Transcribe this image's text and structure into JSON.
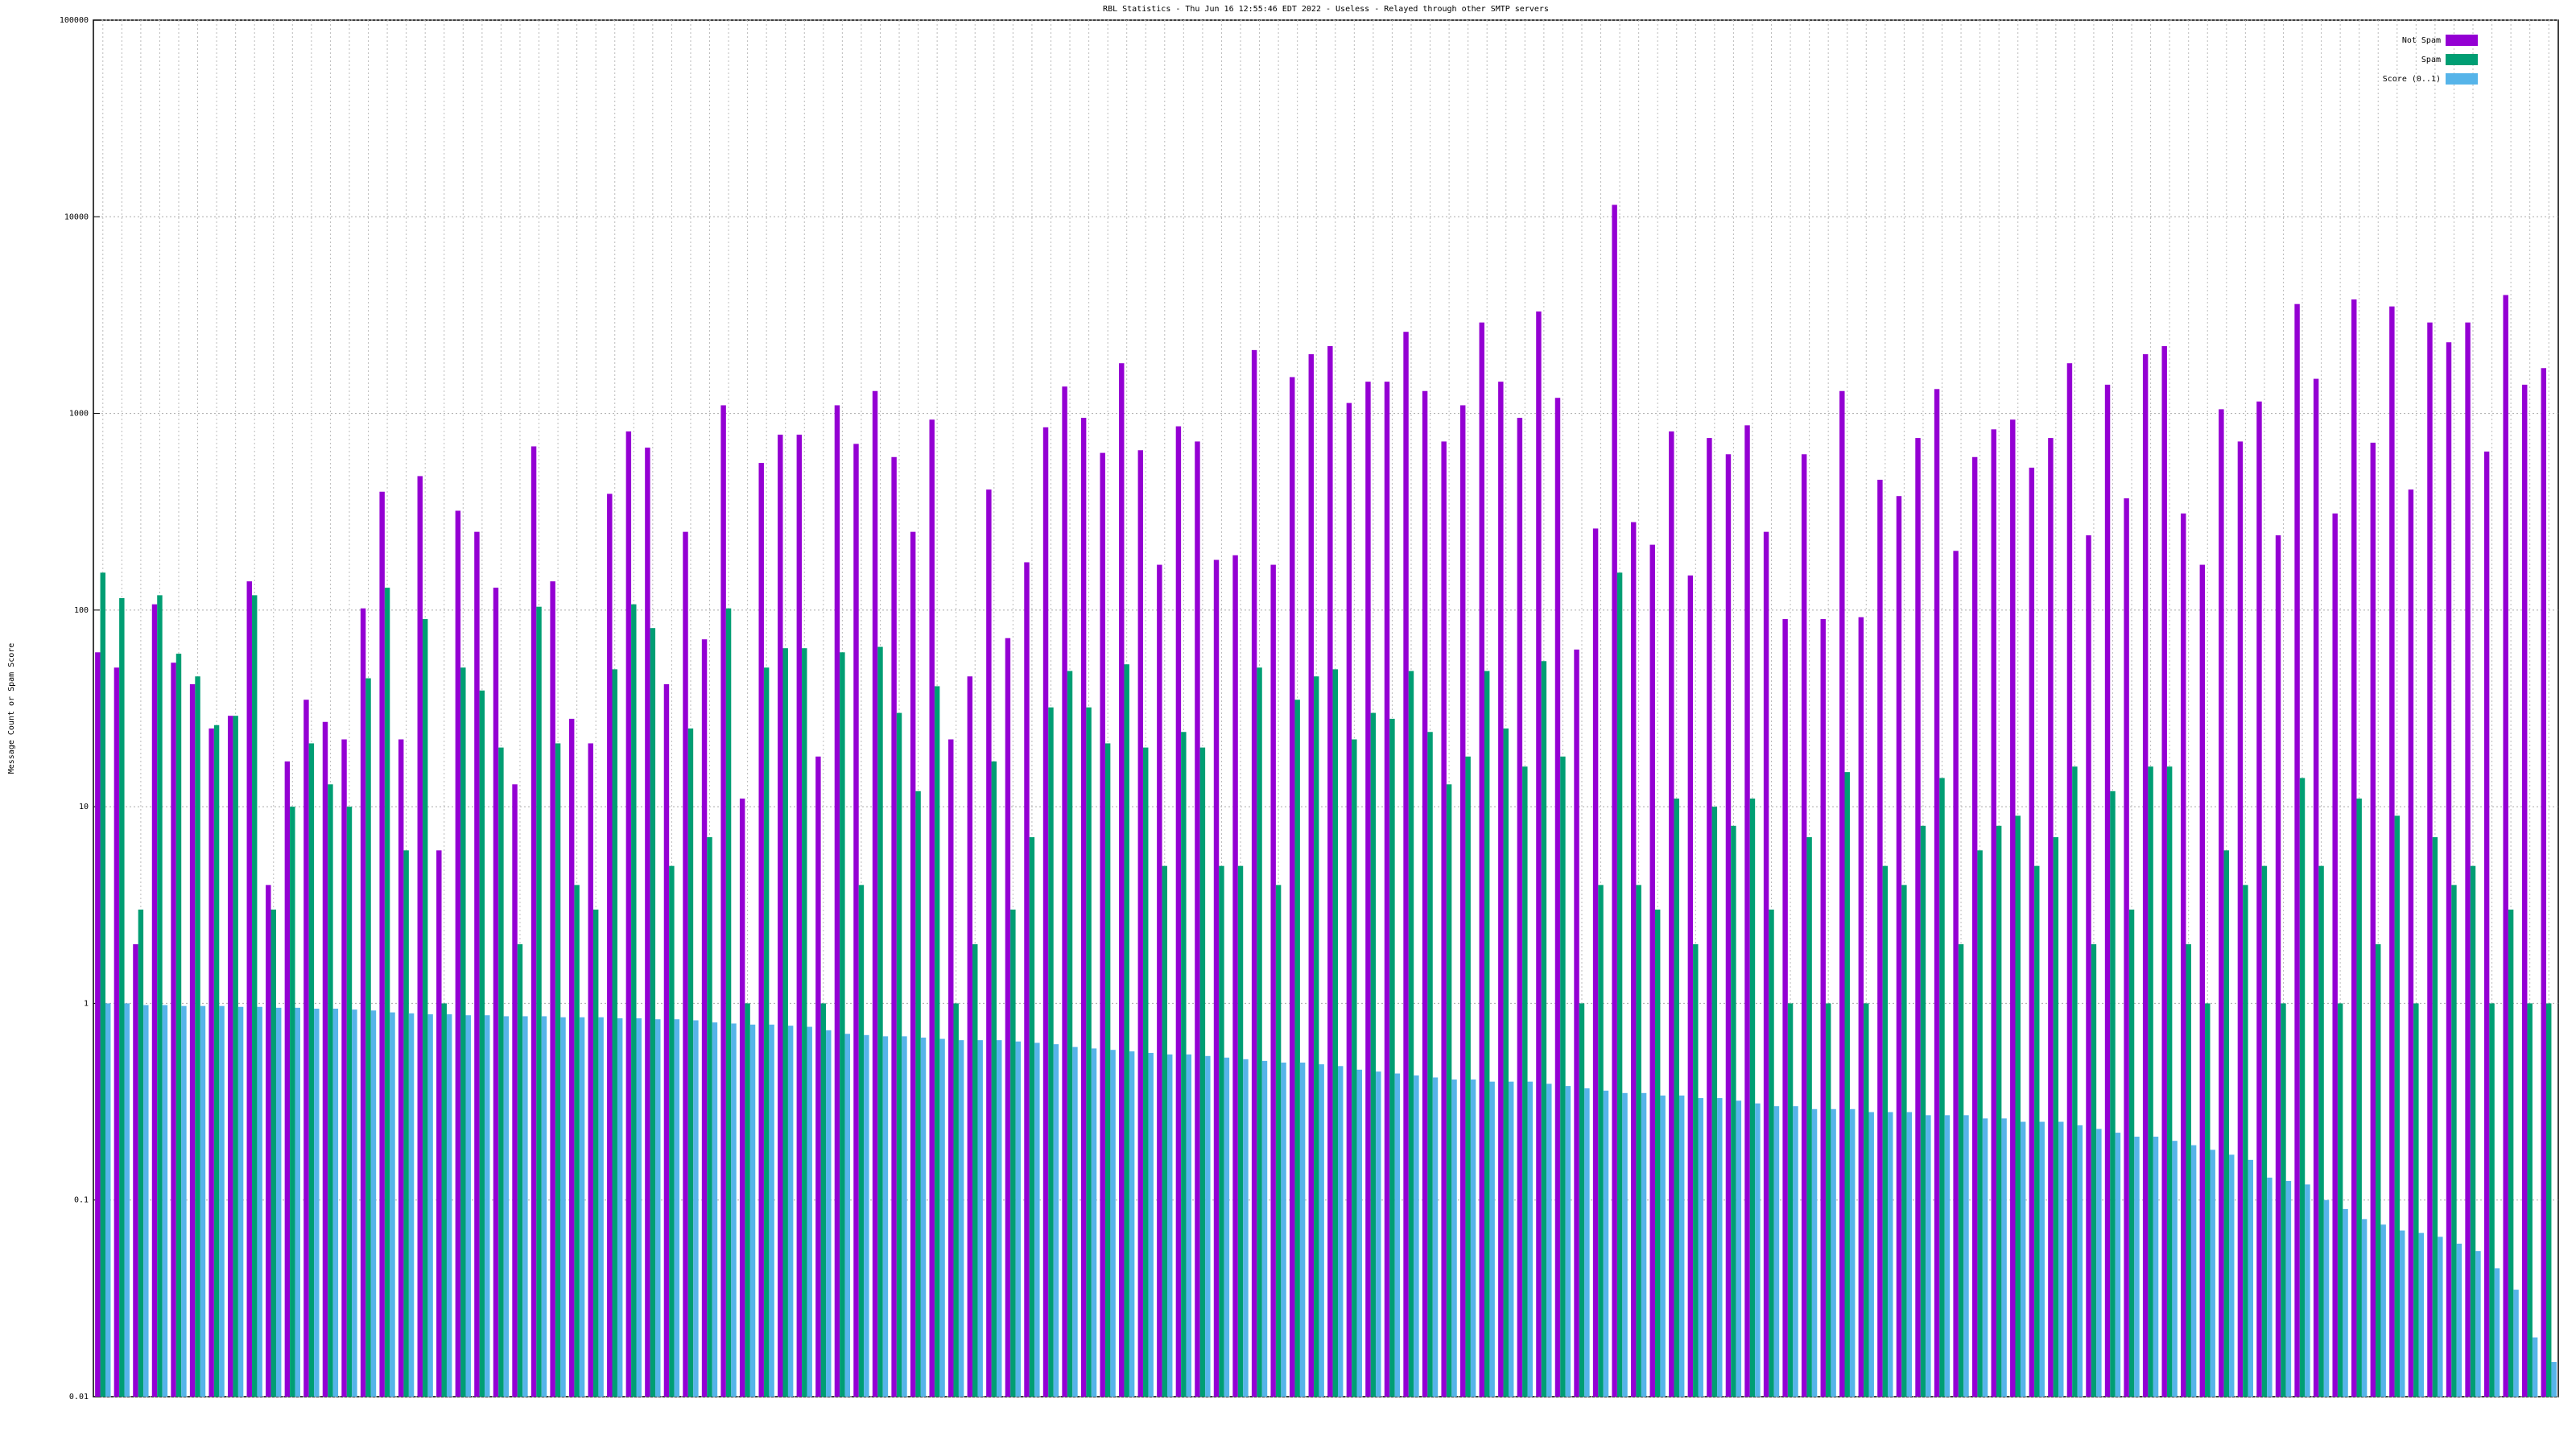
{
  "chart_data": {
    "type": "bar",
    "title": "RBL Statistics - Thu Jun 16 12:55:46 EDT 2022 - Useless - Relayed through other SMTP servers",
    "y_label": "Message Count or Spam Score",
    "log_scale": true,
    "grid": true,
    "legend_position": "top-right",
    "ylim": [
      0.01,
      100000
    ],
    "yticks": [
      0.01,
      0.1,
      1,
      10,
      100,
      1000,
      10000,
      100000
    ],
    "categories": [
      null,
      null,
      null,
      null,
      null,
      null,
      null,
      null,
      null,
      null,
      null,
      null,
      null,
      null,
      null,
      null,
      null,
      null,
      null,
      null,
      null,
      null,
      null,
      null,
      null,
      null,
      null,
      null,
      null,
      null,
      null,
      null,
      null,
      null,
      null,
      null,
      null,
      null,
      null,
      null,
      null,
      null,
      null,
      null,
      null,
      null,
      null,
      null,
      null,
      null,
      null,
      null,
      null,
      null,
      null,
      null,
      null,
      null,
      null,
      null,
      null,
      null,
      null,
      null,
      null,
      null,
      null,
      null,
      null,
      null,
      null,
      null,
      null,
      null,
      null,
      null,
      null,
      null,
      null,
      null,
      null,
      null,
      null,
      null,
      null,
      null,
      null,
      null,
      null,
      null,
      null,
      null,
      null,
      null,
      null,
      null,
      null,
      null,
      null,
      null,
      null,
      null,
      null,
      null,
      null,
      null,
      null,
      null,
      null,
      null,
      null,
      null,
      null,
      null,
      null,
      null,
      null,
      null,
      null,
      null,
      null,
      null,
      null,
      null,
      null,
      null,
      null,
      null,
      null,
      null
    ],
    "series": [
      {
        "name": "Not Spam",
        "color": "#9400d3",
        "values": [
          61,
          51,
          2,
          107,
          54,
          42,
          25,
          29,
          140,
          4,
          17,
          35,
          27,
          22,
          102,
          400,
          22,
          480,
          6,
          320,
          250,
          130,
          13,
          680,
          140,
          28,
          21,
          390,
          810,
          670,
          42,
          250,
          71,
          1100,
          11,
          560,
          780,
          780,
          18,
          1100,
          700,
          1300,
          600,
          250,
          930,
          22,
          46,
          410,
          72,
          175,
          850,
          1370,
          950,
          630,
          1800,
          650,
          170,
          860,
          720,
          180,
          190,
          2100,
          170,
          1530,
          2000,
          2200,
          1130,
          1450,
          1450,
          2600,
          1300,
          720,
          1100,
          2900,
          1450,
          950,
          3300,
          1200,
          63,
          260,
          11500,
          280,
          215,
          810,
          150,
          750,
          620,
          870,
          250,
          90,
          620,
          90,
          1300,
          92,
          460,
          380,
          750,
          1330,
          200,
          600,
          830,
          930,
          530,
          750,
          1800,
          240,
          1400,
          370,
          2000,
          2200,
          310,
          170,
          1050,
          720,
          1150,
          240,
          3600,
          1500,
          310,
          3800,
          710,
          3500,
          410,
          2900,
          2300,
          2900,
          640,
          4000,
          1400,
          1700
        ]
      },
      {
        "name": "Spam",
        "color": "#009e73",
        "values": [
          155,
          115,
          3,
          119,
          60,
          46,
          26,
          29,
          119,
          3,
          10,
          21,
          13,
          10,
          45,
          130,
          6,
          90,
          1,
          51,
          39,
          20,
          2,
          104,
          21,
          4,
          3,
          50,
          107,
          81,
          5,
          25,
          7,
          102,
          1,
          51,
          64,
          64,
          1,
          61,
          4,
          65,
          30,
          12,
          41,
          1,
          2,
          17,
          3,
          7,
          32,
          49,
          32,
          21,
          53,
          20,
          5,
          24,
          20,
          5,
          5,
          51,
          4,
          35,
          46,
          50,
          22,
          30,
          28,
          49,
          24,
          13,
          18,
          49,
          25,
          16,
          55,
          18,
          1,
          4,
          155,
          4,
          3,
          11,
          2,
          10,
          8,
          11,
          3,
          1,
          7,
          1,
          15,
          1,
          5,
          4,
          8,
          14,
          2,
          6,
          8,
          9,
          5,
          7,
          16,
          2,
          12,
          3,
          16,
          16,
          2,
          1,
          6,
          4,
          5,
          1,
          14,
          5,
          1,
          11,
          2,
          9,
          1,
          7,
          4,
          5,
          1,
          3,
          1,
          1
        ]
      },
      {
        "name": "Score (0..1)",
        "color": "#56b4e9",
        "values": [
          1,
          1,
          0.98,
          0.98,
          0.97,
          0.97,
          0.97,
          0.96,
          0.96,
          0.95,
          0.95,
          0.94,
          0.94,
          0.93,
          0.92,
          0.9,
          0.89,
          0.88,
          0.88,
          0.87,
          0.87,
          0.86,
          0.86,
          0.86,
          0.85,
          0.85,
          0.85,
          0.84,
          0.84,
          0.83,
          0.83,
          0.82,
          0.8,
          0.79,
          0.78,
          0.78,
          0.77,
          0.76,
          0.73,
          0.7,
          0.69,
          0.68,
          0.68,
          0.67,
          0.66,
          0.65,
          0.65,
          0.65,
          0.64,
          0.63,
          0.62,
          0.6,
          0.59,
          0.58,
          0.57,
          0.56,
          0.55,
          0.55,
          0.54,
          0.53,
          0.52,
          0.51,
          0.5,
          0.5,
          0.49,
          0.48,
          0.46,
          0.45,
          0.44,
          0.43,
          0.42,
          0.41,
          0.41,
          0.4,
          0.4,
          0.4,
          0.39,
          0.38,
          0.37,
          0.36,
          0.35,
          0.35,
          0.34,
          0.34,
          0.33,
          0.33,
          0.32,
          0.31,
          0.3,
          0.3,
          0.29,
          0.29,
          0.29,
          0.28,
          0.28,
          0.28,
          0.27,
          0.27,
          0.27,
          0.26,
          0.26,
          0.25,
          0.25,
          0.25,
          0.24,
          0.23,
          0.22,
          0.21,
          0.21,
          0.2,
          0.19,
          0.18,
          0.17,
          0.16,
          0.13,
          0.125,
          0.12,
          0.1,
          0.09,
          0.08,
          0.075,
          0.07,
          0.068,
          0.065,
          0.06,
          0.055,
          0.045,
          0.035,
          0.02,
          0.015
        ]
      }
    ]
  }
}
